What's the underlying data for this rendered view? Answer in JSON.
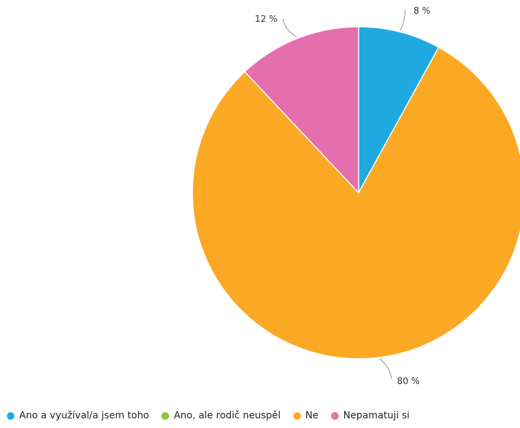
{
  "chart_data": {
    "type": "pie",
    "slices": [
      {
        "name": "Ano a využíval/a jsem toho",
        "value": 8,
        "label": "8 %",
        "color": "#1fa9e1"
      },
      {
        "name": "Ano, ale rodič neuspěl",
        "value": 0,
        "label": "",
        "color": "#8cc63f"
      },
      {
        "name": "Ne",
        "value": 80,
        "label": "80 %",
        "color": "#fba924"
      },
      {
        "name": "Nepamatuji si",
        "value": 12,
        "label": "12 %",
        "color": "#e56ead"
      }
    ],
    "start_angle": "12 o'clock",
    "direction": "clockwise",
    "legend_position": "bottom-left"
  }
}
